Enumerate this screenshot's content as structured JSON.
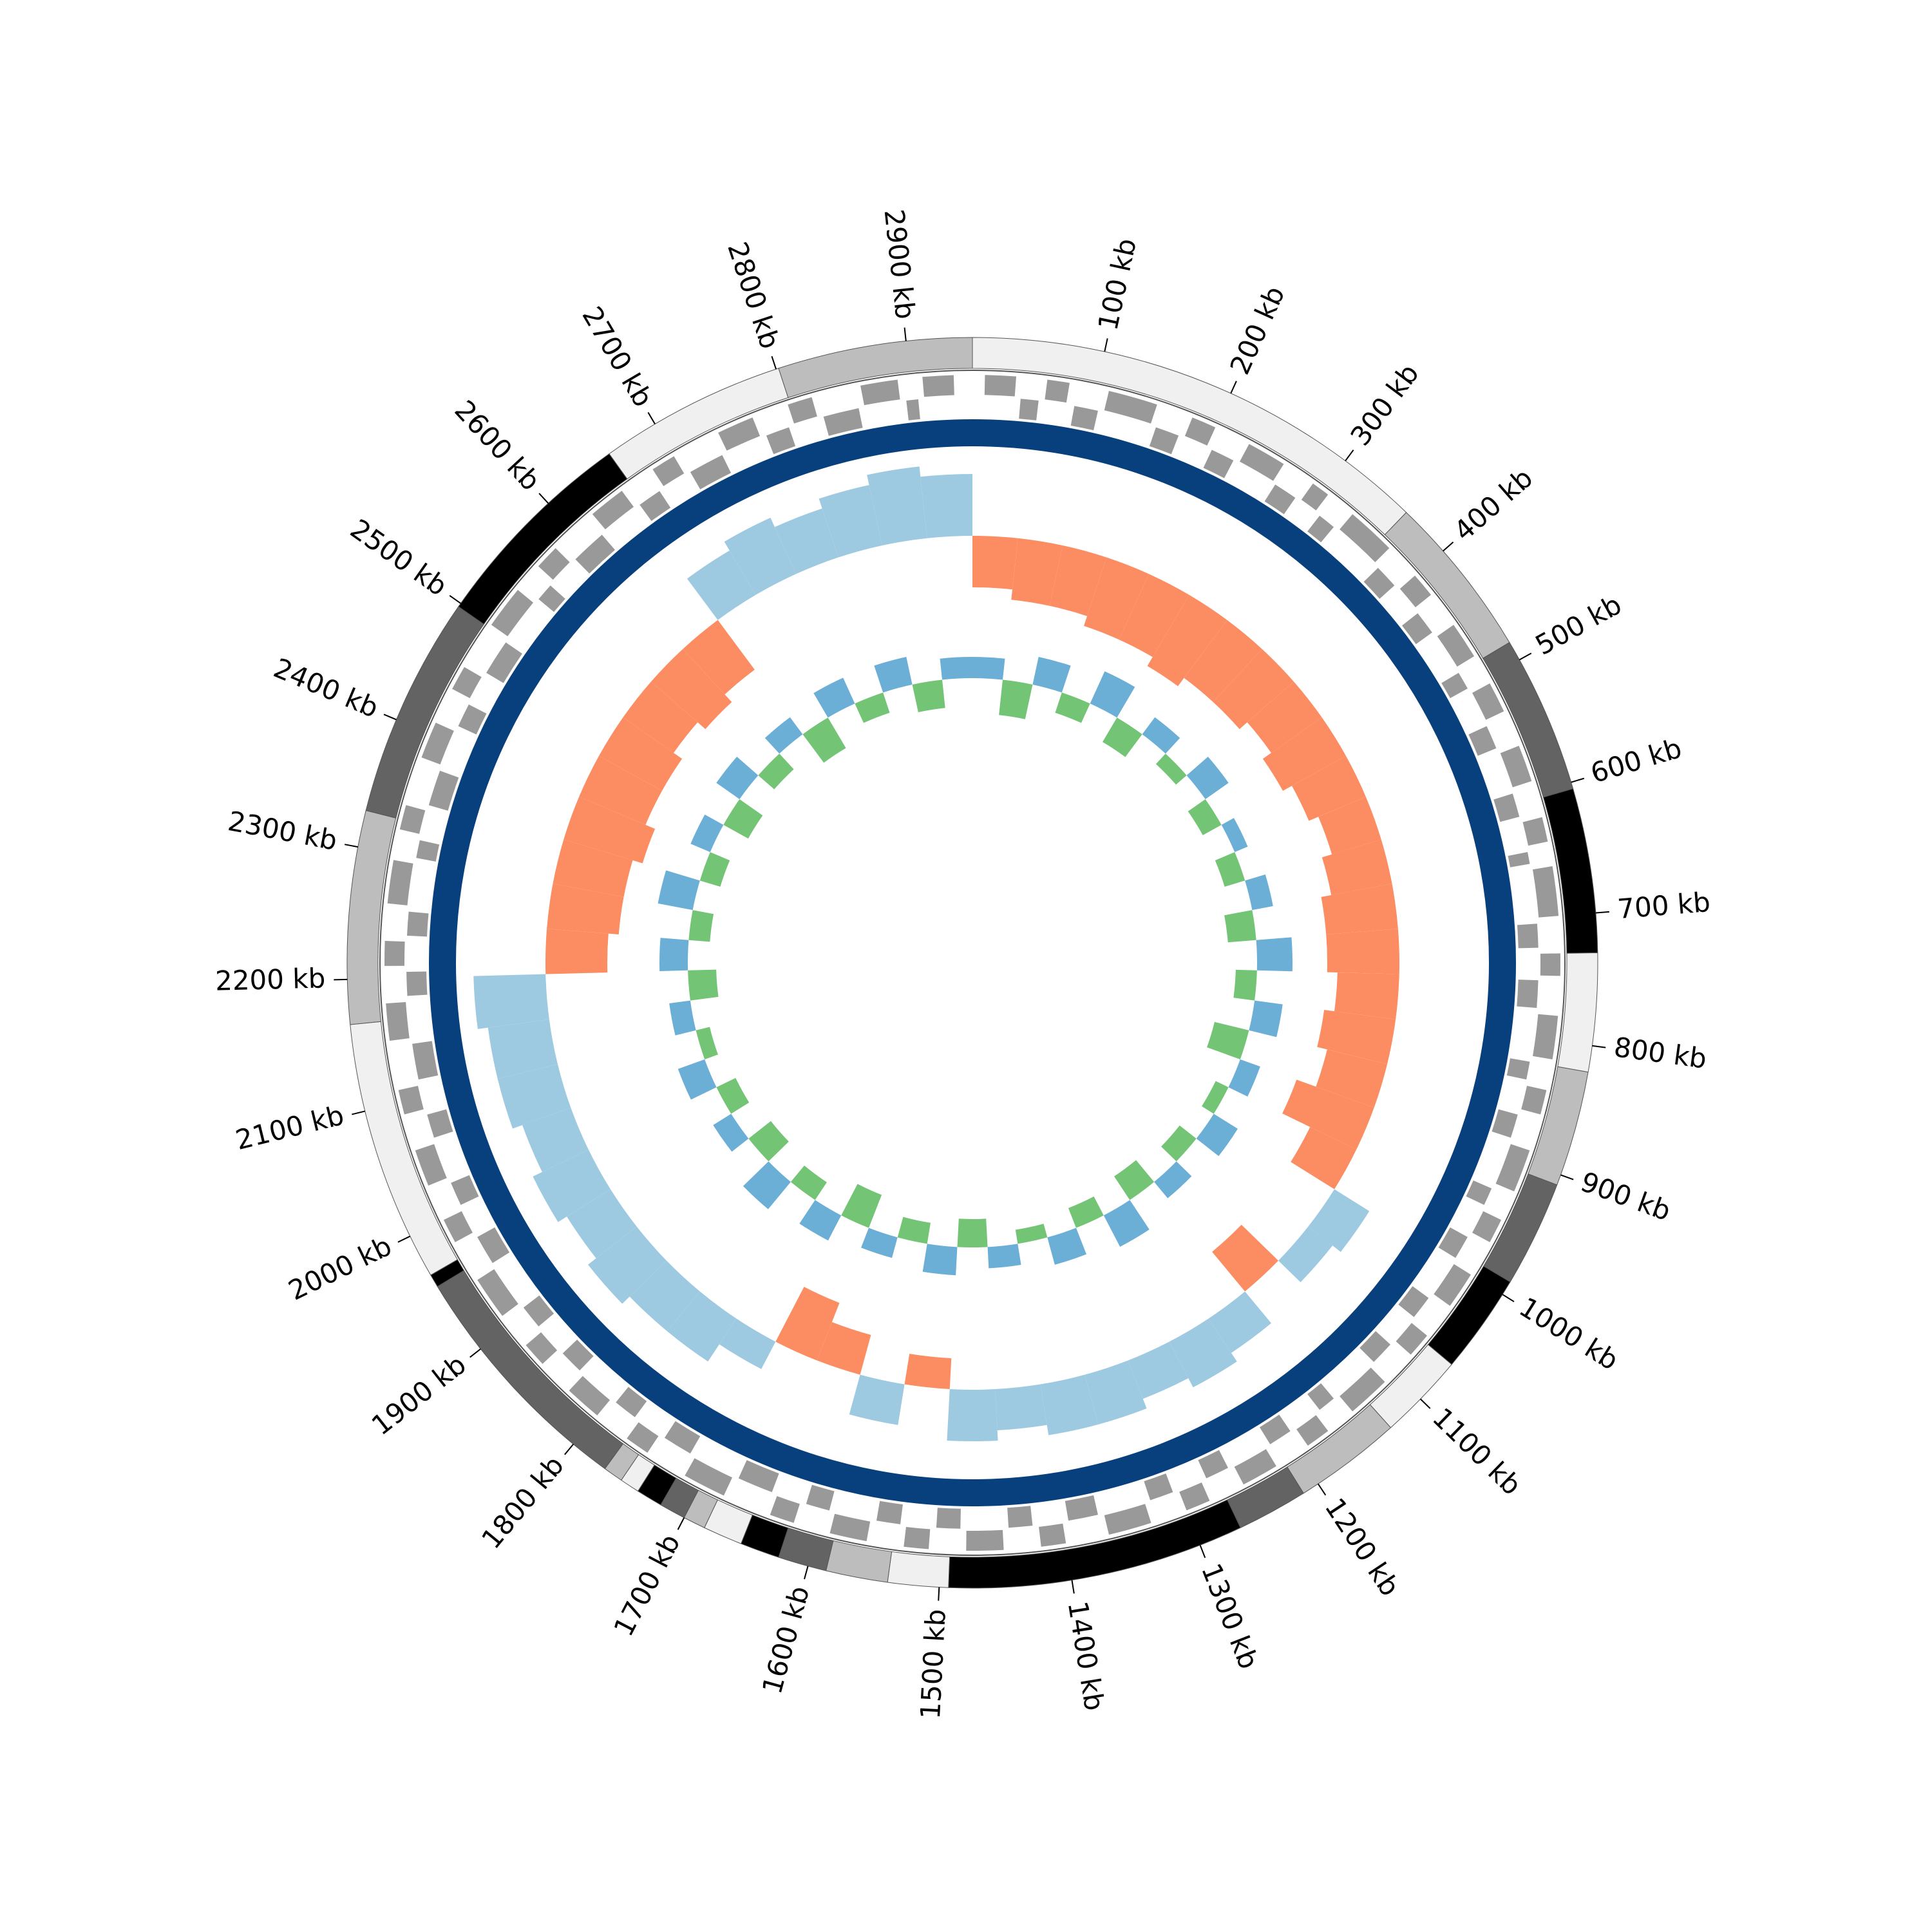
{
  "chart_data": {
    "type": "circular-genome",
    "xlim": [
      0,
      2950
    ],
    "xticks": [
      {
        "value": 100,
        "label": "100 kb"
      },
      {
        "value": 200,
        "label": "200 kb"
      },
      {
        "value": 300,
        "label": "300 kb"
      },
      {
        "value": 400,
        "label": "400 kb"
      },
      {
        "value": 500,
        "label": "500 kb"
      },
      {
        "value": 600,
        "label": "600 kb"
      },
      {
        "value": 700,
        "label": "700 kb"
      },
      {
        "value": 800,
        "label": "800 kb"
      },
      {
        "value": 900,
        "label": "900 kb"
      },
      {
        "value": 1000,
        "label": "1000 kb"
      },
      {
        "value": 1100,
        "label": "1100 kb"
      },
      {
        "value": 1200,
        "label": "1200 kb"
      },
      {
        "value": 1300,
        "label": "1300 kb"
      },
      {
        "value": 1400,
        "label": "1400 kb"
      },
      {
        "value": 1500,
        "label": "1500 kb"
      },
      {
        "value": 1600,
        "label": "1600 kb"
      },
      {
        "value": 1700,
        "label": "1700 kb"
      },
      {
        "value": 1800,
        "label": "1800 kb"
      },
      {
        "value": 1900,
        "label": "1900 kb"
      },
      {
        "value": 2000,
        "label": "2000 kb"
      },
      {
        "value": 2100,
        "label": "2100 kb"
      },
      {
        "value": 2200,
        "label": "2200 kb"
      },
      {
        "value": 2300,
        "label": "2300 kb"
      },
      {
        "value": 2400,
        "label": "2400 kb"
      },
      {
        "value": 2500,
        "label": "2500 kb"
      },
      {
        "value": 2600,
        "label": "2600 kb"
      },
      {
        "value": 2700,
        "label": "2700 kb"
      },
      {
        "value": 2800,
        "label": "2800 kb"
      },
      {
        "value": 2900,
        "label": "2900 kb"
      }
    ],
    "contigs": [
      {
        "start": 0,
        "end": 360,
        "color": "#f0f0f0"
      },
      {
        "start": 360,
        "end": 485,
        "color": "#bdbdbd"
      },
      {
        "start": 485,
        "end": 605,
        "color": "#636363"
      },
      {
        "start": 605,
        "end": 730,
        "color": "#000000"
      },
      {
        "start": 730,
        "end": 820,
        "color": "#f0f0f0"
      },
      {
        "start": 820,
        "end": 908,
        "color": "#bdbdbd"
      },
      {
        "start": 908,
        "end": 989,
        "color": "#636363"
      },
      {
        "start": 989,
        "end": 1065,
        "color": "#000000"
      },
      {
        "start": 1065,
        "end": 1131,
        "color": "#f0f0f0"
      },
      {
        "start": 1131,
        "end": 1213,
        "color": "#bdbdbd"
      },
      {
        "start": 1213,
        "end": 1267,
        "color": "#636363"
      },
      {
        "start": 1267,
        "end": 1493,
        "color": "#000000"
      },
      {
        "start": 1493,
        "end": 1539,
        "color": "#f0f0f0"
      },
      {
        "start": 1539,
        "end": 1586,
        "color": "#bdbdbd"
      },
      {
        "start": 1586,
        "end": 1623,
        "color": "#636363"
      },
      {
        "start": 1623,
        "end": 1653,
        "color": "#000000"
      },
      {
        "start": 1653,
        "end": 1683,
        "color": "#f0f0f0"
      },
      {
        "start": 1683,
        "end": 1700,
        "color": "#bdbdbd"
      },
      {
        "start": 1700,
        "end": 1720,
        "color": "#636363"
      },
      {
        "start": 1720,
        "end": 1740,
        "color": "#000000"
      },
      {
        "start": 1740,
        "end": 1755,
        "color": "#f0f0f0"
      },
      {
        "start": 1755,
        "end": 1770,
        "color": "#bdbdbd"
      },
      {
        "start": 1770,
        "end": 1957,
        "color": "#636363"
      },
      {
        "start": 1957,
        "end": 1967,
        "color": "#000000"
      },
      {
        "start": 1967,
        "end": 2166,
        "color": "#f0f0f0"
      },
      {
        "start": 2166,
        "end": 2328,
        "color": "#bdbdbd"
      },
      {
        "start": 2328,
        "end": 2497,
        "color": "#636363"
      },
      {
        "start": 2497,
        "end": 2659,
        "color": "#000000"
      },
      {
        "start": 2659,
        "end": 2802,
        "color": "#f0f0f0"
      },
      {
        "start": 2802,
        "end": 2950,
        "color": "#bdbdbd"
      }
    ],
    "gene_color": "#999999",
    "genes_plus": [
      [
        10,
        35
      ],
      [
        60,
        78
      ],
      [
        110,
        150
      ],
      [
        180,
        200
      ],
      [
        230,
        262
      ],
      [
        290,
        305
      ],
      [
        330,
        370
      ],
      [
        400,
        420
      ],
      [
        450,
        480
      ],
      [
        505,
        530
      ],
      [
        560,
        590
      ],
      [
        620,
        640
      ],
      [
        660,
        700
      ],
      [
        730,
        748
      ],
      [
        780,
        815
      ],
      [
        840,
        860
      ],
      [
        890,
        925
      ],
      [
        950,
        970
      ],
      [
        1000,
        1030
      ],
      [
        1060,
        1080
      ],
      [
        1110,
        1145
      ],
      [
        1170,
        1190
      ],
      [
        1220,
        1250
      ],
      [
        1280,
        1300
      ],
      [
        1330,
        1365
      ],
      [
        1400,
        1420
      ],
      [
        1450,
        1480
      ],
      [
        1510,
        1530
      ],
      [
        1560,
        1590
      ],
      [
        1620,
        1640
      ],
      [
        1680,
        1715
      ],
      [
        1750,
        1770
      ],
      [
        1800,
        1830
      ],
      [
        1860,
        1880
      ],
      [
        1910,
        1945
      ],
      [
        1980,
        2000
      ],
      [
        2030,
        2060
      ],
      [
        2090,
        2110
      ],
      [
        2150,
        2180
      ],
      [
        2210,
        2230
      ],
      [
        2260,
        2295
      ],
      [
        2320,
        2340
      ],
      [
        2380,
        2410
      ],
      [
        2440,
        2460
      ],
      [
        2500,
        2535
      ],
      [
        2560,
        2580
      ],
      [
        2620,
        2650
      ],
      [
        2680,
        2700
      ],
      [
        2740,
        2770
      ],
      [
        2800,
        2820
      ],
      [
        2860,
        2890
      ],
      [
        2910,
        2935
      ]
    ],
    "genes_minus": [
      [
        40,
        55
      ],
      [
        85,
        105
      ],
      [
        155,
        175
      ],
      [
        205,
        225
      ],
      [
        265,
        285
      ],
      [
        310,
        325
      ],
      [
        375,
        395
      ],
      [
        425,
        445
      ],
      [
        485,
        500
      ],
      [
        535,
        555
      ],
      [
        595,
        615
      ],
      [
        645,
        655
      ],
      [
        705,
        725
      ],
      [
        752,
        775
      ],
      [
        820,
        835
      ],
      [
        865,
        885
      ],
      [
        930,
        945
      ],
      [
        975,
        995
      ],
      [
        1035,
        1055
      ],
      [
        1085,
        1105
      ],
      [
        1150,
        1165
      ],
      [
        1195,
        1215
      ],
      [
        1255,
        1275
      ],
      [
        1305,
        1325
      ],
      [
        1370,
        1395
      ],
      [
        1425,
        1445
      ],
      [
        1485,
        1505
      ],
      [
        1535,
        1555
      ],
      [
        1595,
        1615
      ],
      [
        1645,
        1675
      ],
      [
        1720,
        1745
      ],
      [
        1775,
        1795
      ],
      [
        1835,
        1855
      ],
      [
        1885,
        1905
      ],
      [
        1950,
        1975
      ],
      [
        2005,
        2025
      ],
      [
        2065,
        2085
      ],
      [
        2115,
        2145
      ],
      [
        2185,
        2205
      ],
      [
        2235,
        2255
      ],
      [
        2300,
        2315
      ],
      [
        2345,
        2375
      ],
      [
        2415,
        2435
      ],
      [
        2465,
        2495
      ],
      [
        2540,
        2555
      ],
      [
        2585,
        2615
      ],
      [
        2655,
        2675
      ],
      [
        2705,
        2735
      ],
      [
        2775,
        2795
      ],
      [
        2825,
        2855
      ],
      [
        2895,
        2905
      ]
    ],
    "x": [
      0,
      50,
      100,
      150,
      200,
      250,
      300,
      350,
      400,
      450,
      500,
      550,
      600,
      650,
      700,
      750,
      800,
      850,
      900,
      950,
      1000,
      1050,
      1100,
      1150,
      1200,
      1250,
      1300,
      1350,
      1400,
      1450,
      1500,
      1550,
      1600,
      1650,
      1700,
      1750,
      1800,
      1850,
      1900,
      1950,
      2000,
      2050,
      2100,
      2150,
      2200,
      2250,
      2300,
      2350,
      2400,
      2450,
      2500,
      2550,
      2600,
      2650,
      2700,
      2750,
      2800,
      2850,
      2900
    ],
    "gc_skew": {
      "ylim": [
        -1,
        1
      ],
      "positive_color": "#fc8d62",
      "negative_color": "#9ecae1",
      "values": [
        0.5,
        0.6,
        0.6,
        0.7,
        0.7,
        0.8,
        0.7,
        0.7,
        0.6,
        0.7,
        0.6,
        0.5,
        0.6,
        0.7,
        0.7,
        0.6,
        0.7,
        0.6,
        0.8,
        0.5,
        -0.4,
        -0.3,
        0.5,
        -0.4,
        -0.5,
        -0.4,
        -0.5,
        -0.5,
        -0.4,
        -0.5,
        0.3,
        -0.4,
        0.4,
        0.6,
        -0.3,
        -0.5,
        -0.5,
        -0.6,
        -0.5,
        -0.6,
        -0.5,
        -0.6,
        -0.6,
        -0.7,
        0.6,
        0.7,
        0.7,
        0.8,
        0.7,
        0.7,
        0.6,
        0.7,
        0.6,
        -0.5,
        -0.6,
        -0.5,
        -0.6,
        -0.7,
        -0.6
      ]
    },
    "gc_content": {
      "ylim": [
        -1,
        1
      ],
      "positive_color": "#6baed6",
      "negative_color": "#74c476",
      "values": [
        0.3,
        -0.5,
        0.4,
        -0.3,
        0.5,
        -0.4,
        0.3,
        -0.2,
        0.4,
        -0.3,
        0.2,
        -0.3,
        0.3,
        -0.4,
        0.5,
        -0.3,
        0.4,
        -0.5,
        0.3,
        -0.2,
        0.4,
        -0.3,
        0.3,
        -0.4,
        0.5,
        -0.3,
        0.4,
        -0.2,
        0.3,
        -0.4,
        0.4,
        -0.3,
        0.3,
        -0.5,
        0.4,
        -0.3,
        0.5,
        -0.4,
        0.3,
        -0.3,
        0.4,
        -0.2,
        0.3,
        -0.4,
        0.4,
        -0.3,
        0.5,
        -0.3,
        0.3,
        -0.4,
        0.4,
        -0.3,
        0.3,
        -0.5,
        0.4,
        -0.3,
        0.4,
        -0.4,
        0.3
      ]
    }
  }
}
